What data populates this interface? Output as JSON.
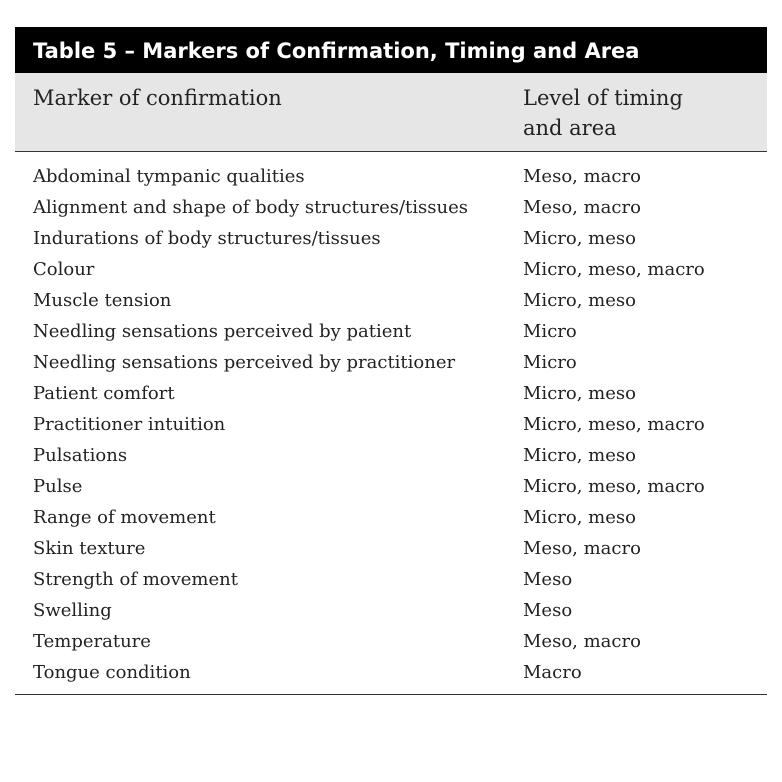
{
  "table": {
    "title": "Table 5 – Markers of Confirmation, Timing and Area",
    "header": [
      "Marker of confirmation",
      "Level of timing and area"
    ],
    "rows": [
      [
        "Abdominal tympanic qualities",
        "Meso, macro"
      ],
      [
        "Alignment and shape of body structures/tissues",
        "Meso, macro"
      ],
      [
        "Indurations of body structures/tissues",
        "Micro, meso"
      ],
      [
        "Colour",
        "Micro, meso, macro"
      ],
      [
        "Muscle tension",
        "Micro, meso"
      ],
      [
        "Needling sensations perceived by patient",
        "Micro"
      ],
      [
        "Needling sensations perceived by practitioner",
        "Micro"
      ],
      [
        "Patient comfort",
        "Micro, meso"
      ],
      [
        "Practitioner intuition",
        "Micro, meso, macro"
      ],
      [
        "Pulsations",
        "Micro, meso"
      ],
      [
        "Pulse",
        "Micro, meso, macro"
      ],
      [
        "Range of movement",
        "Micro, meso"
      ],
      [
        "Skin texture",
        "Meso, macro"
      ],
      [
        "Strength of movement",
        "Meso"
      ],
      [
        "Swelling",
        "Meso"
      ],
      [
        "Temperature",
        "Meso, macro"
      ],
      [
        "Tongue condition",
        "Macro"
      ]
    ]
  }
}
